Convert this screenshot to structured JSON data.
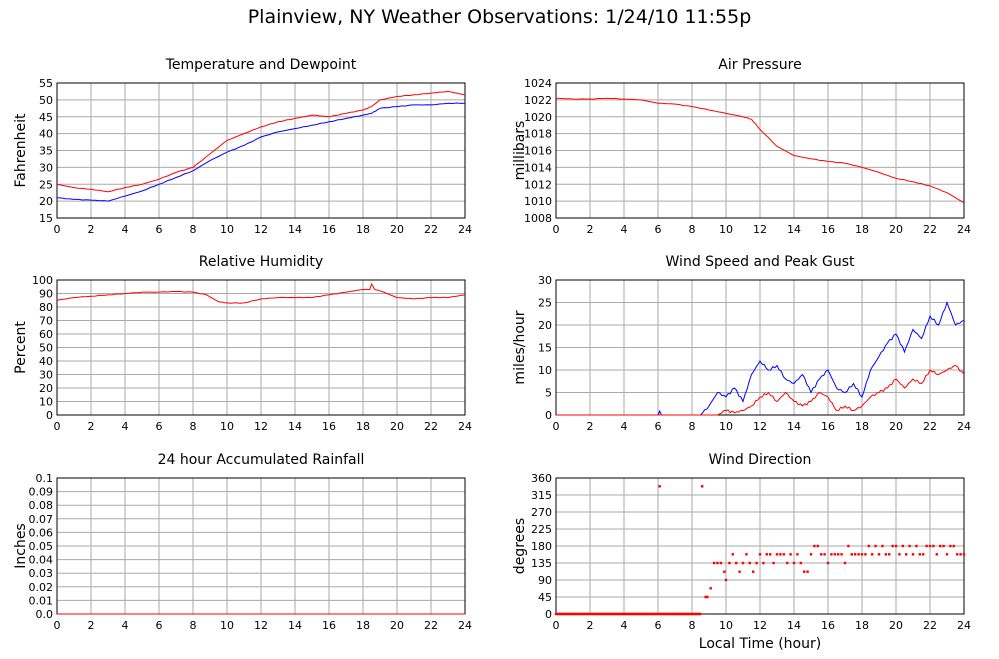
{
  "page": {
    "title": "Plainview, NY Weather Observations: 1/24/10 11:55p",
    "xlabel_bottom": "Local Time (hour)"
  },
  "colors": {
    "red": "#ff0000",
    "blue": "#0000ff",
    "grid": "#aaaaaa"
  },
  "chart_data": [
    {
      "id": "temp",
      "type": "line",
      "title": "Temperature and Dewpoint",
      "ylabel": "Fahrenheit",
      "xlabel": "",
      "xlim": [
        0,
        24
      ],
      "ylim": [
        15,
        55
      ],
      "xticks": [
        0,
        2,
        4,
        6,
        8,
        10,
        12,
        14,
        16,
        18,
        20,
        22,
        24
      ],
      "yticks": [
        15,
        20,
        25,
        30,
        35,
        40,
        45,
        50,
        55
      ],
      "grid": true,
      "series": [
        {
          "color": "#ff0000",
          "x": [
            0,
            1,
            2,
            3,
            4,
            5,
            6,
            7,
            8,
            9,
            10,
            11,
            12,
            13,
            14,
            15,
            16,
            17,
            18,
            18.5,
            19,
            20,
            21,
            22,
            23,
            24
          ],
          "y": [
            25,
            24,
            23.5,
            22.8,
            24,
            25,
            26.5,
            28.5,
            30,
            34,
            38,
            40,
            42,
            43.5,
            44.5,
            45.5,
            45,
            46,
            47,
            48,
            50,
            51,
            51.5,
            52,
            52.5,
            51.5
          ]
        },
        {
          "color": "#0000ff",
          "x": [
            0,
            1,
            2,
            3,
            4,
            5,
            6,
            7,
            8,
            9,
            10,
            11,
            12,
            13,
            14,
            15,
            16,
            17,
            18,
            18.5,
            19,
            20,
            21,
            22,
            23,
            24
          ],
          "y": [
            21,
            20.5,
            20.3,
            20,
            21.5,
            23,
            25,
            27,
            29,
            32,
            34.5,
            36.5,
            39,
            40.5,
            41.5,
            42.5,
            43.5,
            44.5,
            45.5,
            46,
            47.5,
            48,
            48.5,
            48.5,
            49,
            49
          ]
        }
      ]
    },
    {
      "id": "pressure",
      "type": "line",
      "title": "Air Pressure",
      "ylabel": "millibars",
      "xlabel": "",
      "xlim": [
        0,
        24
      ],
      "ylim": [
        1008,
        1024
      ],
      "xticks": [
        0,
        2,
        4,
        6,
        8,
        10,
        12,
        14,
        16,
        18,
        20,
        22,
        24
      ],
      "yticks": [
        1008,
        1010,
        1012,
        1014,
        1016,
        1018,
        1020,
        1022,
        1024
      ],
      "grid": true,
      "series": [
        {
          "color": "#ff0000",
          "x": [
            0,
            1,
            2,
            3,
            4,
            5,
            6,
            7,
            8,
            9,
            10,
            11,
            11.5,
            12,
            13,
            14,
            15,
            16,
            17,
            18,
            19,
            20,
            21,
            22,
            23,
            24
          ],
          "y": [
            1022.2,
            1022.1,
            1022.1,
            1022.2,
            1022.1,
            1022,
            1021.6,
            1021.5,
            1021.2,
            1020.8,
            1020.4,
            1020,
            1019.7,
            1018.5,
            1016.5,
            1015.4,
            1015,
            1014.7,
            1014.5,
            1014,
            1013.4,
            1012.7,
            1012.3,
            1011.8,
            1011,
            1009.8
          ]
        }
      ]
    },
    {
      "id": "humidity",
      "type": "line",
      "title": "Relative Humidity",
      "ylabel": "Percent",
      "xlabel": "",
      "xlim": [
        0,
        24
      ],
      "ylim": [
        0,
        100
      ],
      "xticks": [
        0,
        2,
        4,
        6,
        8,
        10,
        12,
        14,
        16,
        18,
        20,
        22,
        24
      ],
      "yticks": [
        0,
        10,
        20,
        30,
        40,
        50,
        60,
        70,
        80,
        90,
        100
      ],
      "grid": true,
      "series": [
        {
          "color": "#ff0000",
          "x": [
            0,
            1,
            2,
            3,
            4,
            5,
            6,
            7,
            8,
            8.8,
            9.2,
            9.5,
            10,
            11,
            12,
            13,
            14,
            15,
            16,
            17,
            18,
            18.4,
            18.5,
            18.7,
            19,
            20,
            21,
            22,
            23,
            24
          ],
          "y": [
            85,
            87,
            88,
            89,
            90,
            91,
            91,
            91.5,
            91,
            89,
            86,
            84,
            83,
            83,
            86,
            87,
            87,
            87,
            89,
            91,
            93,
            93,
            97,
            93,
            92,
            87,
            86,
            87,
            87,
            89
          ]
        }
      ]
    },
    {
      "id": "wind",
      "type": "line",
      "title": "Wind Speed and Peak Gust",
      "ylabel": "miles/hour",
      "xlabel": "",
      "xlim": [
        0,
        24
      ],
      "ylim": [
        0,
        30
      ],
      "xticks": [
        0,
        2,
        4,
        6,
        8,
        10,
        12,
        14,
        16,
        18,
        20,
        22,
        24
      ],
      "yticks": [
        0,
        5,
        10,
        15,
        20,
        25,
        30
      ],
      "grid": true,
      "series": [
        {
          "color": "#0000ff",
          "x": [
            0,
            6,
            6.1,
            6.2,
            8.5,
            9,
            9.5,
            10,
            10.5,
            11,
            11.5,
            12,
            12.5,
            13,
            13.5,
            14,
            14.5,
            15,
            15.5,
            16,
            16.5,
            17,
            17.5,
            18,
            18.5,
            19,
            19.5,
            20,
            20.5,
            21,
            21.5,
            22,
            22.5,
            23,
            23.5,
            24
          ],
          "y": [
            0,
            0,
            1,
            0,
            0,
            2,
            5,
            4,
            6,
            3,
            9,
            12,
            10,
            11,
            8,
            7,
            9,
            5,
            8,
            10,
            6,
            5,
            7,
            4,
            10,
            13,
            16,
            18,
            14,
            19,
            17,
            22,
            20,
            25,
            20,
            21
          ]
        },
        {
          "color": "#ff0000",
          "x": [
            0,
            9.5,
            10,
            10.5,
            11,
            11.5,
            12,
            12.5,
            13,
            13.5,
            14,
            14.5,
            15,
            15.5,
            16,
            16.5,
            17,
            17.5,
            18,
            18.5,
            19,
            19.5,
            20,
            20.5,
            21,
            21.5,
            22,
            22.5,
            23,
            23.5,
            24
          ],
          "y": [
            0,
            0,
            1,
            0.5,
            1,
            2,
            4,
            5,
            3,
            5,
            3,
            2,
            3,
            5,
            4,
            1,
            2,
            1,
            2,
            4,
            5,
            6,
            8,
            6,
            8,
            7,
            10,
            9,
            10,
            11,
            9
          ]
        }
      ]
    },
    {
      "id": "rain",
      "type": "line",
      "title": "24 hour Accumulated Rainfall",
      "ylabel": "Inches",
      "xlabel": "",
      "xlim": [
        0,
        24
      ],
      "ylim": [
        0,
        0.1
      ],
      "xticks": [
        0,
        2,
        4,
        6,
        8,
        10,
        12,
        14,
        16,
        18,
        20,
        22,
        24
      ],
      "yticks": [
        "0.0",
        "0.01",
        "0.02",
        "0.03",
        "0.04",
        "0.05",
        "0.06",
        "0.07",
        "0.08",
        "0.09",
        "0.1"
      ],
      "grid": true,
      "series": [
        {
          "color": "#ff0000",
          "x": [
            0,
            24
          ],
          "y": [
            0,
            0
          ]
        }
      ]
    },
    {
      "id": "dir",
      "type": "scatter",
      "title": "Wind Direction",
      "ylabel": "degrees",
      "xlabel": "Local Time (hour)",
      "xlim": [
        0,
        24
      ],
      "ylim": [
        0,
        360
      ],
      "xticks": [
        0,
        2,
        4,
        6,
        8,
        10,
        12,
        14,
        16,
        18,
        20,
        22,
        24
      ],
      "yticks": [
        0,
        45,
        90,
        135,
        180,
        225,
        270,
        315,
        360
      ],
      "grid": true,
      "series": [
        {
          "color": "#ff0000",
          "x": [
            6.1,
            8.6,
            8.8,
            8.9,
            9.1,
            9.3,
            9.5,
            9.7,
            9.9,
            10,
            10.2,
            10.4,
            10.6,
            10.8,
            11,
            11.2,
            11.4,
            11.6,
            11.8,
            12,
            12.2,
            12.4,
            12.6,
            12.8,
            13,
            13.2,
            13.4,
            13.6,
            13.8,
            14,
            14.2,
            14.4,
            14.6,
            14.8,
            15,
            15.2,
            15.4,
            15.6,
            15.8,
            16,
            16.2,
            16.4,
            16.6,
            16.8,
            17,
            17.2,
            17.4,
            17.6,
            17.8,
            18,
            18.2,
            18.4,
            18.6,
            18.8,
            19,
            19.2,
            19.4,
            19.6,
            19.8,
            20,
            20.2,
            20.4,
            20.6,
            20.8,
            21,
            21.2,
            21.4,
            21.6,
            21.8,
            22,
            22.2,
            22.4,
            22.6,
            22.8,
            23,
            23.2,
            23.4,
            23.6,
            23.8,
            24
          ],
          "y": [
            338,
            338,
            45,
            45,
            68,
            135,
            135,
            135,
            112,
            90,
            135,
            158,
            135,
            112,
            135,
            158,
            135,
            112,
            135,
            158,
            135,
            158,
            158,
            135,
            158,
            158,
            158,
            135,
            158,
            135,
            158,
            135,
            112,
            112,
            158,
            180,
            180,
            158,
            158,
            135,
            158,
            158,
            158,
            158,
            135,
            180,
            158,
            158,
            158,
            158,
            158,
            180,
            158,
            180,
            158,
            180,
            158,
            158,
            180,
            180,
            158,
            180,
            158,
            180,
            158,
            180,
            158,
            158,
            180,
            180,
            180,
            158,
            180,
            180,
            158,
            180,
            180,
            158,
            158,
            158
          ]
        }
      ]
    }
  ]
}
